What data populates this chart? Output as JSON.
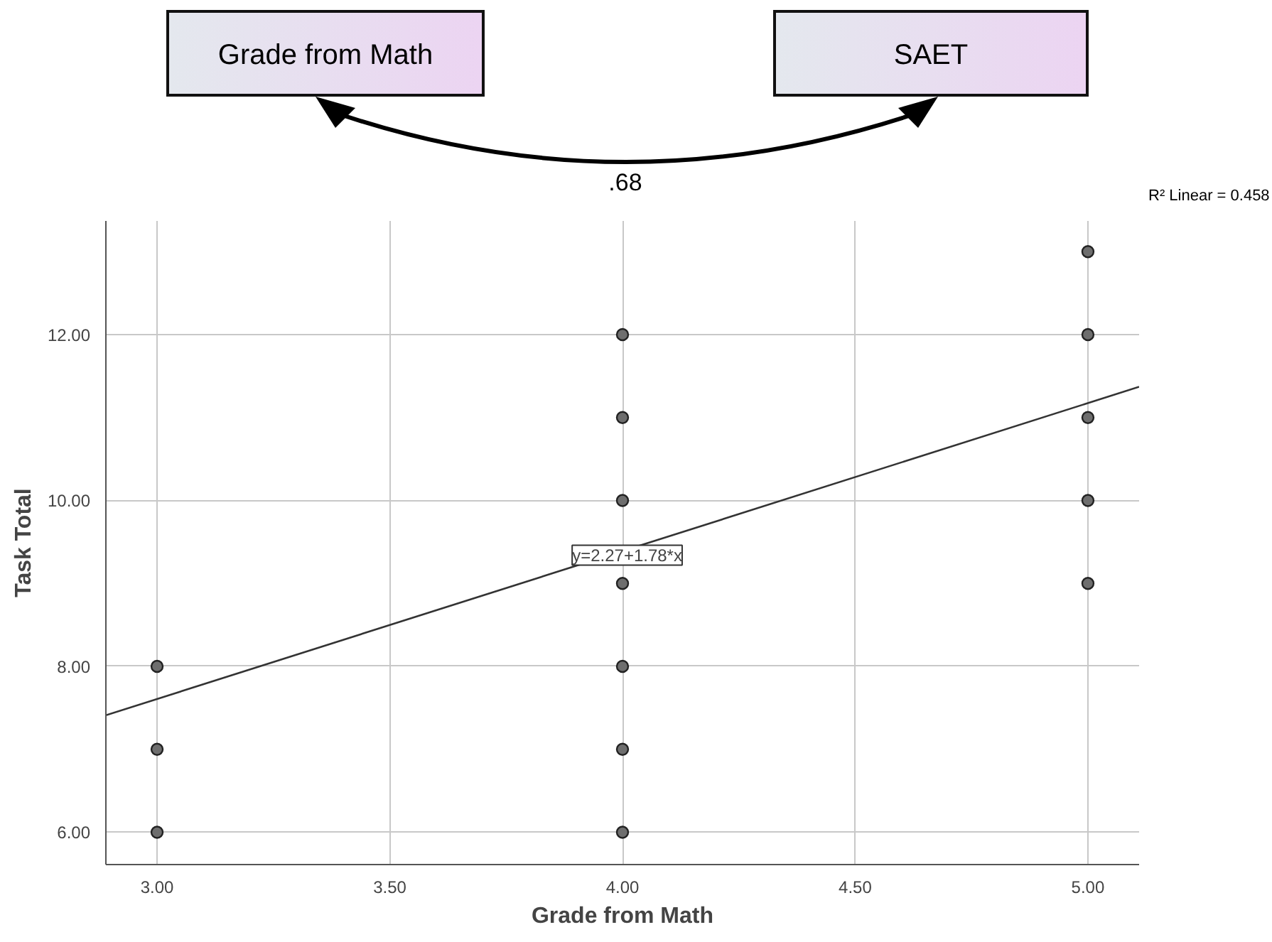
{
  "chart_data": {
    "type": "scatter",
    "xlabel": "Grade from Math",
    "ylabel": "Task Total",
    "xlim": [
      2.89,
      5.11
    ],
    "ylim": [
      5.61,
      13.37
    ],
    "xticks": [
      {
        "value": 3,
        "label": "3.00"
      },
      {
        "value": 3.5,
        "label": "3.50"
      },
      {
        "value": 4,
        "label": "4.00"
      },
      {
        "value": 4.5,
        "label": "4.50"
      },
      {
        "value": 5,
        "label": "5.00"
      }
    ],
    "yticks": [
      {
        "value": 6,
        "label": "6.00"
      },
      {
        "value": 8,
        "label": "8.00"
      },
      {
        "value": 10,
        "label": "10.00"
      },
      {
        "value": 12,
        "label": "12.00"
      }
    ],
    "grid": true,
    "marker": "circle",
    "series": [
      {
        "color": "#6e6e6e",
        "x": [
          3,
          3,
          3,
          4,
          4,
          4,
          4,
          4,
          4,
          4,
          5,
          5,
          5,
          5,
          5
        ],
        "values": [
          6,
          7,
          8,
          6,
          7,
          8,
          9,
          10,
          11,
          12,
          9,
          10,
          11,
          12,
          13
        ]
      },
      {
        "type": "line",
        "marker": "none",
        "color": "#333333",
        "x": [
          2.89,
          5.11
        ],
        "values": [
          7.41,
          11.37
        ]
      }
    ],
    "annotations": [
      "Grade from Math",
      "SAET",
      ".68",
      "R² Linear = 0.458",
      {
        "text": "y=2.27+1.78*x",
        "x": 4.01,
        "y": 9.34
      }
    ]
  }
}
